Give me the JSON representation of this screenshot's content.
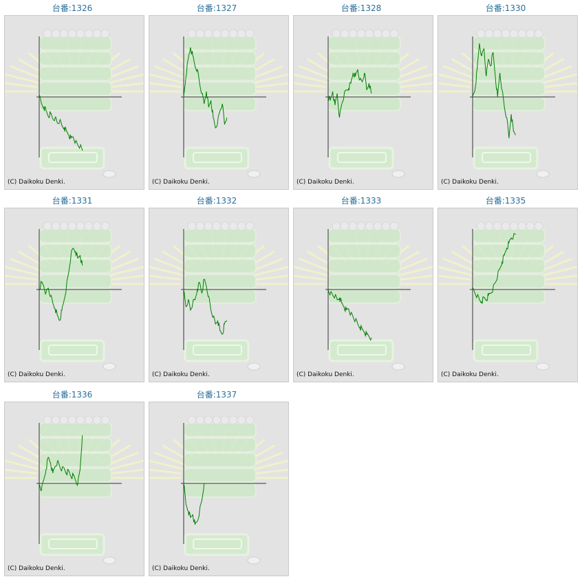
{
  "copyright": "(C) Daikoku Denki.",
  "colors": {
    "title": "#2a6f9b",
    "line": "#008000",
    "axis": "#333333",
    "panel": "#e3e3e3"
  },
  "chart_data": [
    {
      "type": "line",
      "title": "台番:1326",
      "values": [
        0,
        -10,
        -15,
        -20,
        -28,
        -24,
        -32,
        -30,
        -38,
        -35,
        -42,
        -45,
        -50,
        -55,
        -60,
        -58,
        -65,
        -70,
        -72,
        -78
      ]
    },
    {
      "type": "line",
      "title": "台番:1327",
      "values": [
        0,
        30,
        55,
        72,
        60,
        45,
        40,
        20,
        5,
        -10,
        8,
        -15,
        -5,
        -30,
        -45,
        -35,
        -20,
        -10,
        -40,
        -30
      ]
    },
    {
      "type": "line",
      "title": "台番:1328",
      "values": [
        0,
        -5,
        8,
        -12,
        5,
        -30,
        -10,
        2,
        10,
        12,
        20,
        35,
        30,
        40,
        25,
        22,
        35,
        10,
        20,
        5
      ]
    },
    {
      "type": "line",
      "title": "台番:1330",
      "values": [
        0,
        10,
        40,
        78,
        60,
        70,
        30,
        55,
        45,
        65,
        30,
        0,
        35,
        10,
        -15,
        -30,
        -60,
        -25,
        -50,
        -55
      ]
    },
    {
      "type": "line",
      "title": "台番:1331",
      "values": [
        0,
        10,
        5,
        -5,
        2,
        -10,
        -20,
        -28,
        -38,
        -45,
        -30,
        -15,
        5,
        25,
        50,
        60,
        55,
        45,
        50,
        35
      ]
    },
    {
      "type": "line",
      "title": "台番:1332",
      "values": [
        0,
        -25,
        -15,
        -30,
        -20,
        -15,
        0,
        10,
        -5,
        15,
        5,
        -10,
        -30,
        -40,
        -50,
        -45,
        -60,
        -65,
        -50,
        -45
      ]
    },
    {
      "type": "line",
      "title": "台番:1333",
      "values": [
        0,
        -5,
        -8,
        -10,
        -15,
        -12,
        -20,
        -25,
        -30,
        -28,
        -35,
        -40,
        -45,
        -50,
        -55,
        -58,
        -62,
        -65,
        -68,
        -70
      ]
    },
    {
      "type": "line",
      "title": "台番:1335",
      "values": [
        0,
        -5,
        -10,
        -15,
        -18,
        -12,
        -15,
        -8,
        -5,
        2,
        10,
        20,
        30,
        40,
        50,
        60,
        68,
        75,
        78,
        80
      ]
    },
    {
      "type": "line",
      "title": "台番:1336",
      "values": [
        0,
        -10,
        5,
        20,
        38,
        30,
        15,
        25,
        32,
        25,
        20,
        22,
        15,
        18,
        10,
        12,
        5,
        0,
        20,
        70
      ]
    },
    {
      "type": "line",
      "title": "台番:1337",
      "values": [
        0,
        -30,
        -40,
        -50,
        -45,
        -60,
        -55,
        -40,
        -25,
        0
      ]
    }
  ]
}
